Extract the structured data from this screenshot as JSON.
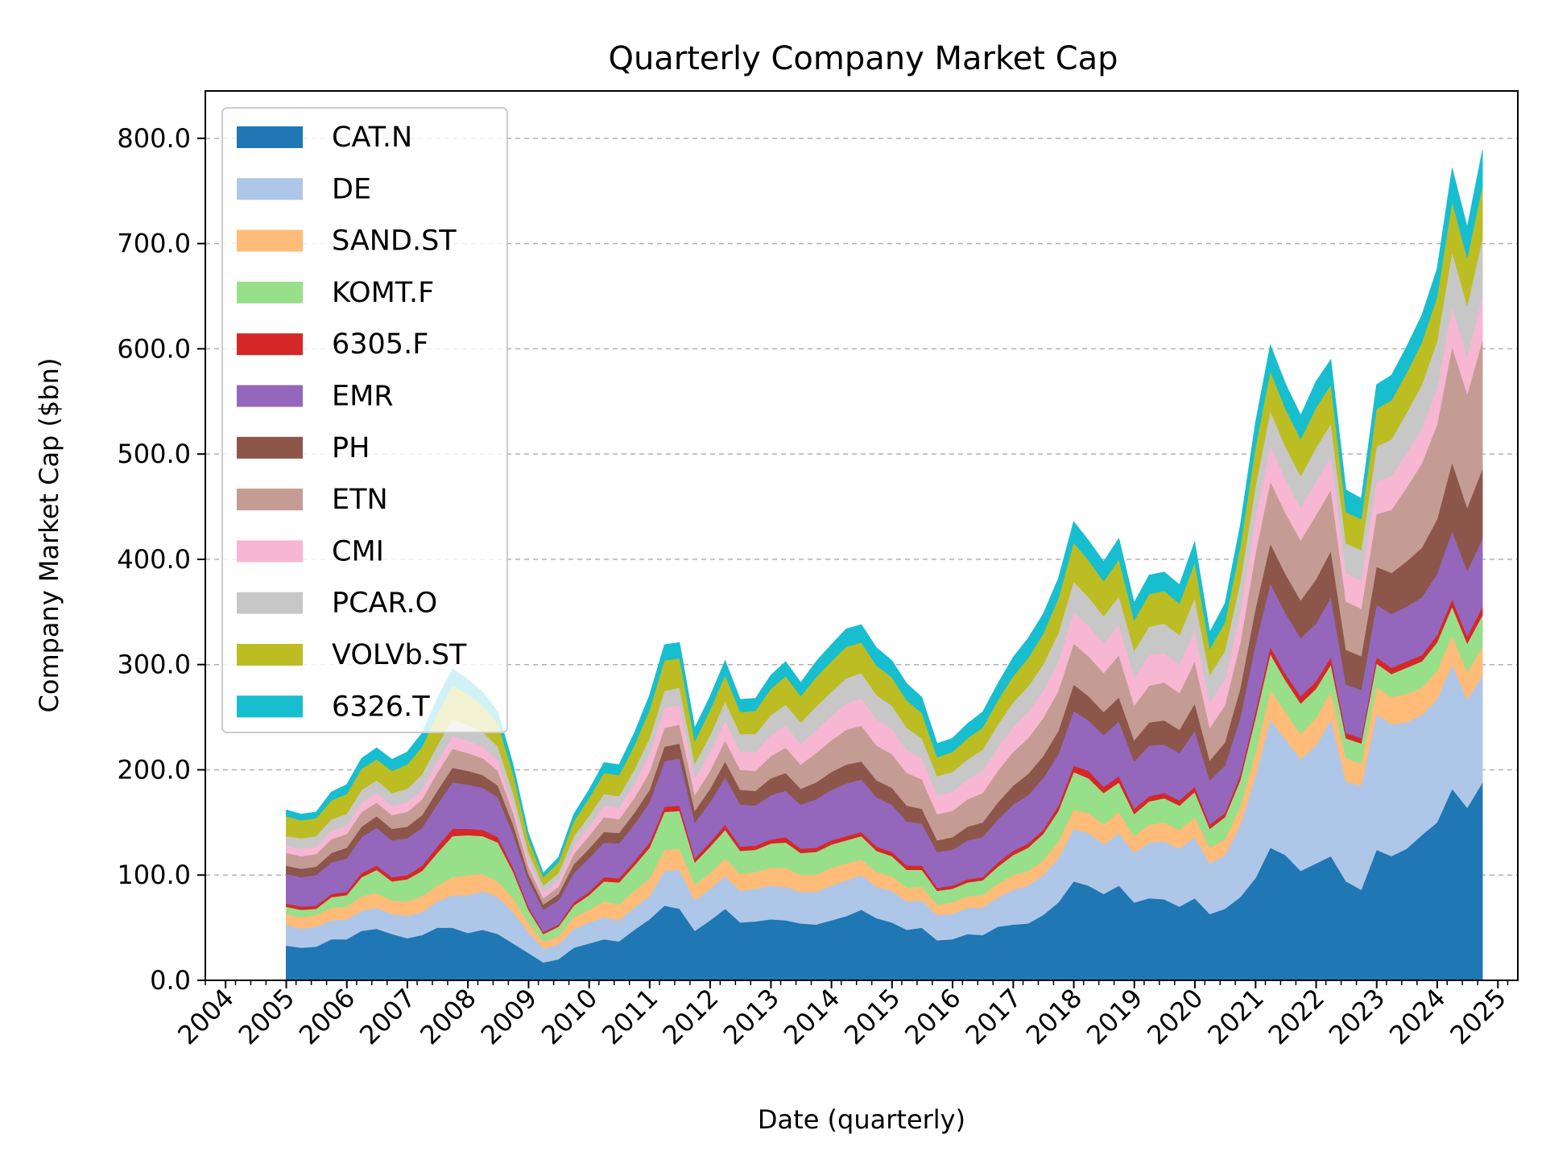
{
  "chart_data": {
    "type": "area",
    "stacked": true,
    "title": "Quarterly Company Market Cap",
    "xlabel": "Date (quarterly)",
    "ylabel": "Company Market Cap ($bn)",
    "ylim": [
      0,
      845
    ],
    "xlim": [
      "2003-09-01",
      "2025-05-01"
    ],
    "yticks": [
      0,
      100,
      200,
      300,
      400,
      500,
      600,
      700,
      800
    ],
    "ytick_labels": [
      "0.0",
      "100.0",
      "200.0",
      "300.0",
      "400.0",
      "500.0",
      "600.0",
      "700.0",
      "800.0"
    ],
    "xticks": [
      "2004",
      "2005",
      "2006",
      "2007",
      "2008",
      "2009",
      "2010",
      "2011",
      "2012",
      "2013",
      "2014",
      "2015",
      "2016",
      "2017",
      "2018",
      "2019",
      "2020",
      "2021",
      "2022",
      "2023",
      "2024",
      "2025"
    ],
    "grid": "y-dashed",
    "legend_position": "upper-left",
    "x": [
      "2004-12-31",
      "2005-03-31",
      "2005-06-30",
      "2005-09-30",
      "2005-12-31",
      "2006-03-31",
      "2006-06-30",
      "2006-09-30",
      "2006-12-31",
      "2007-03-31",
      "2007-06-30",
      "2007-09-30",
      "2007-12-31",
      "2008-03-31",
      "2008-06-30",
      "2008-09-30",
      "2008-12-31",
      "2009-03-31",
      "2009-06-30",
      "2009-09-30",
      "2009-12-31",
      "2010-03-31",
      "2010-06-30",
      "2010-09-30",
      "2010-12-31",
      "2011-03-31",
      "2011-06-30",
      "2011-09-30",
      "2011-12-31",
      "2012-03-31",
      "2012-06-30",
      "2012-09-30",
      "2012-12-31",
      "2013-03-31",
      "2013-06-30",
      "2013-09-30",
      "2013-12-31",
      "2014-03-31",
      "2014-06-30",
      "2014-09-30",
      "2014-12-31",
      "2015-03-31",
      "2015-06-30",
      "2015-09-30",
      "2015-12-31",
      "2016-03-31",
      "2016-06-30",
      "2016-09-30",
      "2016-12-31",
      "2017-03-31",
      "2017-06-30",
      "2017-09-30",
      "2017-12-31",
      "2018-03-31",
      "2018-06-30",
      "2018-09-30",
      "2018-12-31",
      "2019-03-31",
      "2019-06-30",
      "2019-09-30",
      "2019-12-31",
      "2020-03-31",
      "2020-06-30",
      "2020-09-30",
      "2020-12-31",
      "2021-03-31",
      "2021-06-30",
      "2021-09-30",
      "2021-12-31",
      "2022-03-31",
      "2022-06-30",
      "2022-09-30",
      "2022-12-31",
      "2023-03-31",
      "2023-06-30",
      "2023-09-30",
      "2023-12-31",
      "2024-03-31",
      "2024-06-30",
      "2024-09-30"
    ],
    "series": [
      {
        "name": "CAT.N",
        "color": "#1f77b4",
        "values": [
          33,
          31,
          32,
          39,
          39,
          47,
          49,
          44,
          40,
          43,
          50,
          50,
          45,
          48,
          44,
          35,
          26,
          17,
          20,
          31,
          35,
          39,
          37,
          48,
          58,
          71,
          68,
          47,
          57,
          68,
          55,
          56,
          58,
          57,
          54,
          53,
          57,
          61,
          67,
          59,
          55,
          48,
          50,
          38,
          39,
          44,
          43,
          51,
          53,
          54,
          62,
          74,
          94,
          90,
          82,
          90,
          74,
          78,
          77,
          70,
          78,
          63,
          68,
          79,
          97,
          126,
          119,
          104,
          111,
          118,
          94,
          86,
          124,
          118,
          125,
          138,
          150,
          182,
          164,
          188
        ]
      },
      {
        "name": "DE",
        "color": "#aec7e8",
        "values": [
          20,
          18,
          19,
          18,
          19,
          19,
          20,
          19,
          21,
          22,
          25,
          31,
          36,
          37,
          35,
          30,
          20,
          13,
          14,
          18,
          20,
          21,
          20,
          21,
          22,
          33,
          37,
          29,
          30,
          31,
          30,
          31,
          32,
          32,
          30,
          31,
          33,
          34,
          33,
          30,
          30,
          27,
          26,
          24,
          24,
          25,
          26,
          28,
          33,
          36,
          38,
          42,
          50,
          50,
          47,
          50,
          47,
          53,
          55,
          55,
          58,
          48,
          51,
          68,
          97,
          122,
          110,
          106,
          112,
          130,
          95,
          99,
          129,
          125,
          120,
          114,
          117,
          118,
          103,
          102
        ]
      },
      {
        "name": "SAND.ST",
        "color": "#ffbb78",
        "values": [
          10,
          11,
          11,
          12,
          12,
          14,
          14,
          13,
          14,
          15,
          15,
          17,
          19,
          16,
          15,
          13,
          9,
          7,
          8,
          11,
          12,
          15,
          15,
          16,
          17,
          20,
          20,
          15,
          15,
          17,
          16,
          16,
          17,
          18,
          16,
          16,
          17,
          16,
          15,
          14,
          14,
          13,
          13,
          10,
          11,
          11,
          12,
          13,
          14,
          14,
          14,
          16,
          18,
          19,
          19,
          20,
          16,
          17,
          18,
          18,
          19,
          15,
          15,
          18,
          22,
          28,
          26,
          24,
          26,
          27,
          22,
          21,
          26,
          26,
          27,
          26,
          27,
          28,
          26,
          27
        ]
      },
      {
        "name": "KOMT.F",
        "color": "#98df8a",
        "values": [
          7,
          7,
          6,
          10,
          11,
          18,
          22,
          18,
          21,
          24,
          31,
          39,
          38,
          36,
          37,
          25,
          12,
          7,
          9,
          11,
          14,
          19,
          21,
          24,
          29,
          36,
          36,
          21,
          25,
          27,
          22,
          21,
          23,
          24,
          21,
          22,
          22,
          22,
          22,
          20,
          19,
          17,
          16,
          13,
          13,
          13,
          14,
          16,
          19,
          22,
          25,
          29,
          36,
          33,
          30,
          28,
          21,
          22,
          23,
          23,
          24,
          18,
          21,
          25,
          33,
          34,
          30,
          29,
          28,
          25,
          19,
          19,
          22,
          22,
          25,
          25,
          27,
          27,
          27,
          30
        ]
      },
      {
        "name": "6305.F",
        "color": "#d62728",
        "values": [
          3,
          3,
          3,
          3,
          3,
          4,
          4,
          4,
          4,
          5,
          6,
          7,
          6,
          6,
          5,
          4,
          3,
          2,
          2,
          3,
          3,
          4,
          4,
          4,
          5,
          5,
          5,
          4,
          4,
          5,
          4,
          4,
          4,
          5,
          4,
          4,
          4,
          4,
          4,
          4,
          4,
          4,
          4,
          3,
          3,
          3,
          3,
          4,
          4,
          4,
          4,
          5,
          6,
          7,
          6,
          6,
          5,
          5,
          5,
          5,
          5,
          4,
          4,
          5,
          6,
          7,
          6,
          7,
          7,
          7,
          5,
          5,
          6,
          6,
          6,
          6,
          7,
          7,
          7,
          8
        ]
      },
      {
        "name": "EMR",
        "color": "#9467bd",
        "values": [
          28,
          28,
          29,
          30,
          32,
          34,
          36,
          35,
          35,
          36,
          40,
          44,
          42,
          40,
          38,
          32,
          25,
          21,
          23,
          28,
          32,
          33,
          33,
          35,
          38,
          43,
          45,
          34,
          38,
          45,
          40,
          38,
          42,
          44,
          42,
          46,
          48,
          50,
          50,
          47,
          45,
          42,
          40,
          34,
          34,
          37,
          38,
          41,
          44,
          46,
          49,
          49,
          52,
          48,
          49,
          52,
          45,
          48,
          46,
          45,
          53,
          42,
          45,
          54,
          64,
          60,
          58,
          55,
          55,
          57,
          46,
          46,
          50,
          51,
          52,
          55,
          58,
          65,
          62,
          65
        ]
      },
      {
        "name": "PH",
        "color": "#8c564b",
        "values": [
          8,
          8,
          8,
          9,
          10,
          10,
          11,
          11,
          11,
          12,
          13,
          14,
          13,
          12,
          11,
          9,
          6,
          5,
          6,
          8,
          9,
          10,
          10,
          11,
          12,
          14,
          14,
          11,
          13,
          15,
          14,
          14,
          16,
          17,
          15,
          16,
          17,
          18,
          17,
          16,
          16,
          15,
          14,
          11,
          12,
          13,
          14,
          16,
          18,
          20,
          21,
          22,
          25,
          23,
          22,
          23,
          20,
          22,
          23,
          22,
          26,
          19,
          22,
          28,
          34,
          38,
          37,
          36,
          42,
          44,
          33,
          32,
          36,
          39,
          43,
          47,
          52,
          65,
          60,
          66
        ]
      },
      {
        "name": "ETN",
        "color": "#c49c94",
        "values": [
          12,
          12,
          12,
          13,
          13,
          14,
          13,
          13,
          14,
          15,
          17,
          18,
          17,
          16,
          14,
          11,
          7,
          6,
          7,
          10,
          12,
          14,
          13,
          14,
          17,
          18,
          18,
          15,
          17,
          20,
          19,
          19,
          21,
          24,
          23,
          28,
          30,
          33,
          34,
          33,
          32,
          31,
          28,
          25,
          25,
          26,
          28,
          30,
          32,
          34,
          36,
          38,
          39,
          38,
          37,
          40,
          33,
          35,
          36,
          35,
          40,
          31,
          35,
          43,
          52,
          59,
          58,
          57,
          61,
          58,
          46,
          45,
          50,
          60,
          70,
          80,
          90,
          110,
          108,
          122
        ]
      },
      {
        "name": "CMI",
        "color": "#f7b6d2",
        "values": [
          7,
          7,
          7,
          8,
          8,
          9,
          9,
          9,
          9,
          10,
          11,
          12,
          12,
          11,
          10,
          8,
          6,
          5,
          6,
          8,
          9,
          11,
          11,
          14,
          17,
          19,
          19,
          16,
          18,
          19,
          18,
          18,
          20,
          21,
          20,
          22,
          23,
          25,
          26,
          25,
          24,
          22,
          20,
          18,
          18,
          19,
          21,
          22,
          24,
          25,
          26,
          28,
          30,
          29,
          28,
          29,
          27,
          29,
          28,
          27,
          30,
          24,
          25,
          29,
          33,
          35,
          32,
          31,
          32,
          32,
          27,
          27,
          31,
          32,
          33,
          33,
          34,
          38,
          36,
          42
        ]
      },
      {
        "name": "PCAR.O",
        "color": "#c7c7c7",
        "values": [
          9,
          10,
          10,
          11,
          11,
          12,
          12,
          12,
          13,
          14,
          15,
          16,
          15,
          14,
          13,
          11,
          8,
          7,
          7,
          9,
          10,
          11,
          11,
          13,
          15,
          16,
          16,
          14,
          16,
          18,
          16,
          17,
          19,
          20,
          20,
          22,
          23,
          24,
          24,
          23,
          22,
          21,
          19,
          18,
          19,
          19,
          20,
          22,
          23,
          24,
          25,
          27,
          29,
          27,
          26,
          27,
          25,
          27,
          28,
          28,
          30,
          26,
          27,
          29,
          31,
          32,
          31,
          30,
          32,
          31,
          28,
          29,
          33,
          35,
          38,
          42,
          45,
          52,
          48,
          55
        ]
      },
      {
        "name": "VOLVb.ST",
        "color": "#bcbd22",
        "values": [
          19,
          17,
          17,
          18,
          19,
          20,
          20,
          21,
          23,
          26,
          30,
          32,
          29,
          25,
          22,
          18,
          12,
          8,
          10,
          14,
          17,
          20,
          20,
          23,
          27,
          29,
          28,
          21,
          24,
          25,
          21,
          22,
          25,
          27,
          25,
          28,
          29,
          30,
          29,
          28,
          27,
          26,
          24,
          18,
          19,
          20,
          21,
          23,
          25,
          27,
          29,
          33,
          37,
          35,
          33,
          35,
          29,
          31,
          31,
          30,
          34,
          25,
          27,
          33,
          37,
          38,
          36,
          35,
          38,
          37,
          30,
          29,
          36,
          37,
          38,
          40,
          42,
          48,
          45,
          50
        ]
      },
      {
        "name": "6326.T",
        "color": "#17becf",
        "values": [
          6,
          6,
          6,
          8,
          9,
          10,
          11,
          11,
          12,
          13,
          15,
          16,
          14,
          13,
          11,
          9,
          6,
          4,
          5,
          7,
          8,
          10,
          10,
          12,
          14,
          15,
          15,
          13,
          13,
          14,
          12,
          12,
          13,
          14,
          13,
          15,
          16,
          17,
          17,
          17,
          16,
          16,
          15,
          13,
          13,
          14,
          15,
          16,
          18,
          19,
          19,
          19,
          20,
          19,
          19,
          20,
          17,
          18,
          18,
          18,
          20,
          16,
          18,
          21,
          24,
          25,
          24,
          23,
          25,
          24,
          21,
          20,
          23,
          24,
          25,
          26,
          27,
          32,
          30,
          34
        ]
      }
    ]
  }
}
